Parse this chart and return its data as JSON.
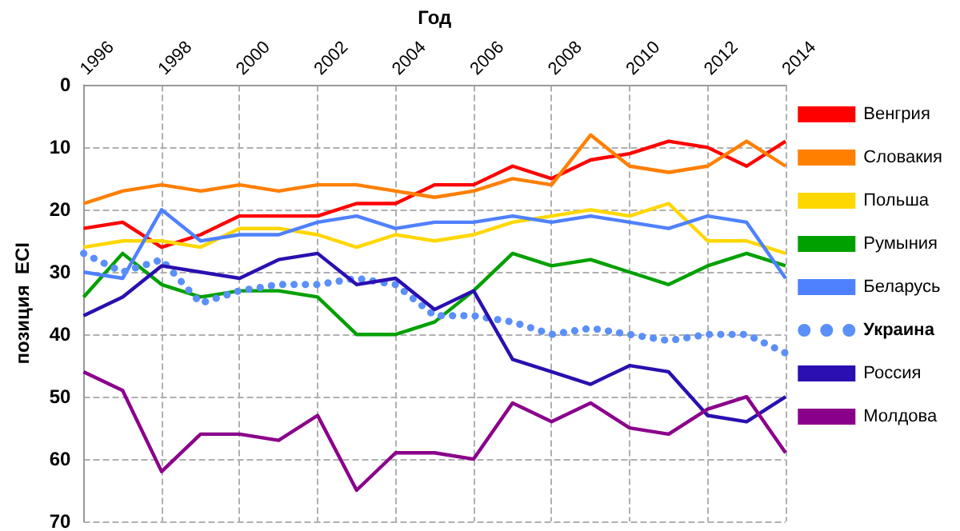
{
  "chart_data": {
    "type": "line",
    "xlabel": "Год",
    "ylabel": "позиция  ECI",
    "x": [
      1996,
      1997,
      1998,
      1999,
      2000,
      2001,
      2002,
      2003,
      2004,
      2005,
      2006,
      2007,
      2008,
      2009,
      2010,
      2011,
      2012,
      2013,
      2014
    ],
    "xlim": [
      1996,
      2014
    ],
    "xticks": [
      1996,
      1998,
      2000,
      2002,
      2004,
      2006,
      2008,
      2010,
      2012,
      2014
    ],
    "ylim": [
      70,
      0
    ],
    "yticks": [
      0,
      10,
      20,
      30,
      40,
      50,
      60,
      70
    ],
    "grid": true,
    "legend": "right",
    "marker": "none",
    "series": [
      {
        "name": "Венгрия",
        "color": "#ff0000",
        "values": [
          23,
          22,
          26,
          24,
          21,
          21,
          21,
          19,
          19,
          16,
          16,
          13,
          15,
          12,
          11,
          9,
          10,
          13,
          9
        ]
      },
      {
        "name": "Словакия",
        "color": "#ff7f00",
        "values": [
          19,
          17,
          16,
          17,
          16,
          17,
          16,
          16,
          17,
          18,
          17,
          15,
          16,
          8,
          13,
          14,
          13,
          9,
          13
        ]
      },
      {
        "name": "Польша",
        "color": "#ffd700",
        "values": [
          26,
          25,
          25,
          26,
          23,
          23,
          24,
          26,
          24,
          25,
          24,
          22,
          21,
          20,
          21,
          19,
          25,
          25,
          27
        ]
      },
      {
        "name": "Румыния",
        "color": "#00a000",
        "values": [
          34,
          27,
          32,
          34,
          33,
          33,
          34,
          40,
          40,
          38,
          33,
          27,
          29,
          28,
          30,
          32,
          29,
          27,
          29
        ]
      },
      {
        "name": "Беларусь",
        "color": "#4f81ff",
        "values": [
          30,
          31,
          20,
          25,
          24,
          24,
          22,
          21,
          23,
          22,
          22,
          21,
          22,
          21,
          22,
          23,
          21,
          22,
          31
        ]
      },
      {
        "name": "Украина",
        "color": "#5b8ff9",
        "line_style": "dotted",
        "values": [
          27,
          30,
          28,
          35,
          33,
          32,
          32,
          31,
          32,
          37,
          37,
          38,
          40,
          39,
          40,
          41,
          40,
          40,
          43
        ]
      },
      {
        "name": "Россия",
        "color": "#2b0fb0",
        "values": [
          37,
          34,
          29,
          30,
          31,
          28,
          27,
          32,
          31,
          36,
          33,
          44,
          46,
          48,
          45,
          46,
          53,
          54,
          50
        ]
      },
      {
        "name": "Молдова",
        "color": "#8b008b",
        "values": [
          46,
          49,
          62,
          56,
          56,
          57,
          53,
          65,
          59,
          59,
          60,
          51,
          54,
          51,
          55,
          56,
          52,
          50,
          59
        ]
      }
    ]
  }
}
